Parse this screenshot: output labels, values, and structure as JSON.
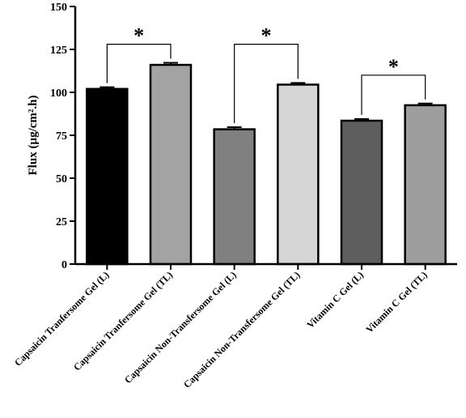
{
  "chart_data": {
    "type": "bar",
    "categories": [
      "Capsaicin Tranfersome Gel (L)",
      "Capsaicin Tranfersome Gel (TL)",
      "Capsaicin Non-Transfersome Gel (L)",
      "Capsaicin Non-Transfersome Gel (TL)",
      "Vitamin C Gel (L)",
      "Vitamin C Gel (TL)"
    ],
    "values": [
      102,
      116,
      78.5,
      104.5,
      83.5,
      92.5
    ],
    "errors": [
      1,
      1.2,
      1.2,
      1,
      1,
      1
    ],
    "colors": [
      "#000000",
      "#a3a3a3",
      "#808080",
      "#d6d6d6",
      "#5e5e5e",
      "#9e9e9e"
    ],
    "ylabel": "Flux (µg/cm².h)",
    "ylim": [
      0,
      150
    ],
    "yticks": [
      0,
      25,
      50,
      75,
      100,
      125,
      150
    ],
    "significance": [
      {
        "from": 0,
        "to": 1,
        "y": 128,
        "label": "*"
      },
      {
        "from": 2,
        "to": 3,
        "y": 128,
        "label": "*"
      },
      {
        "from": 4,
        "to": 5,
        "y": 110,
        "label": "*"
      }
    ],
    "grid": false,
    "legend": false
  }
}
